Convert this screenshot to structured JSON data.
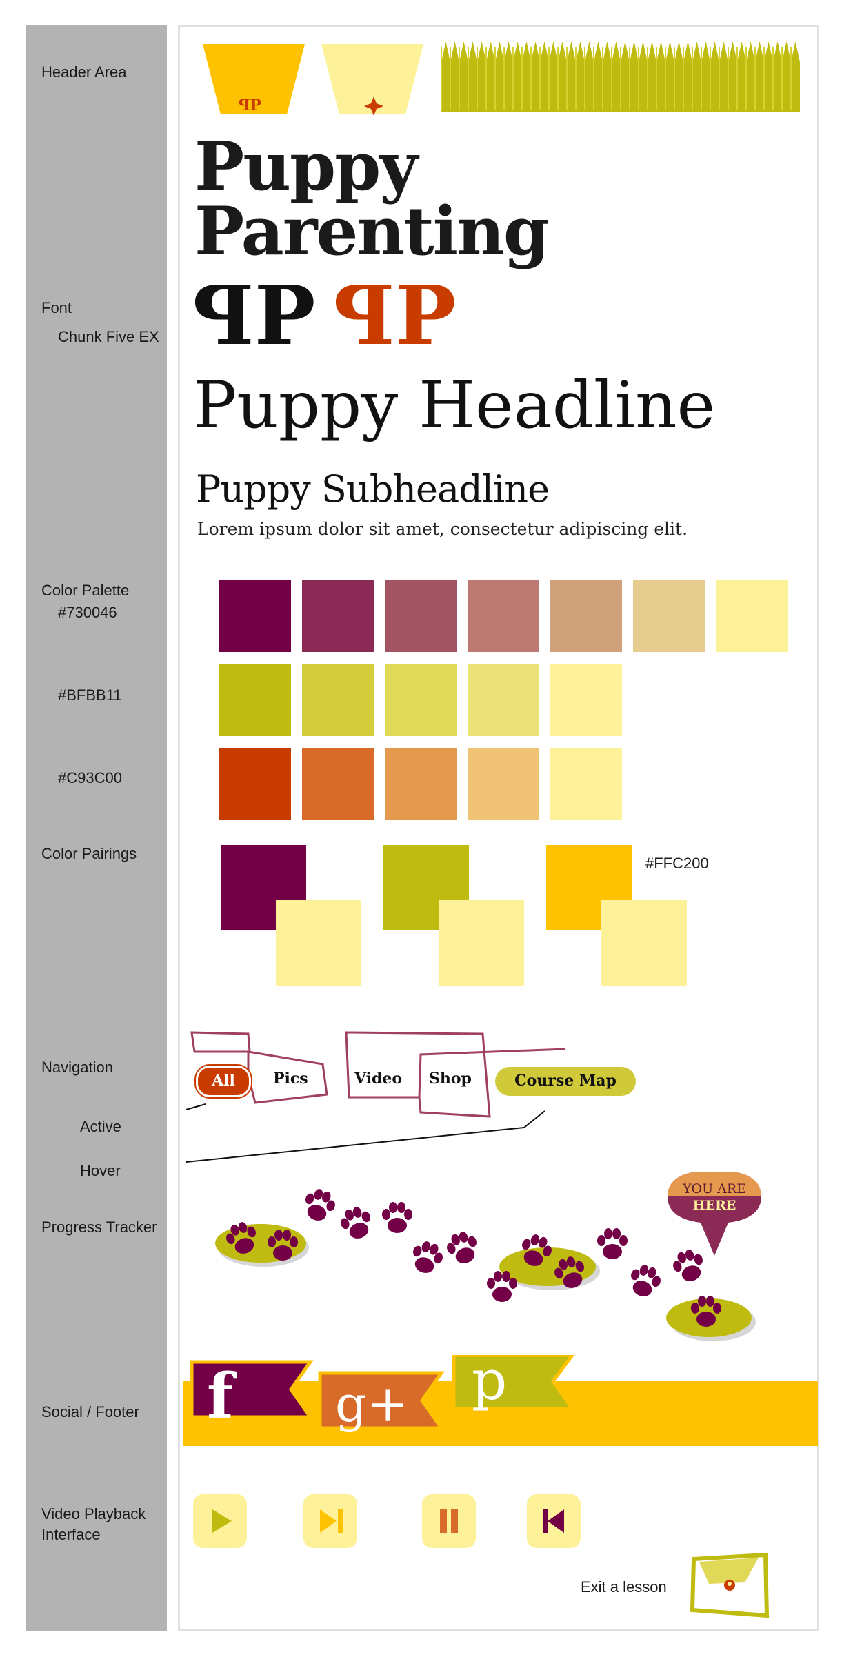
{
  "sidebar_labels": {
    "header_area": "Header Area",
    "font": "Font",
    "font_name": "Chunk Five EX",
    "color_palette": "Color Palette",
    "purple_hex": "#730046",
    "green_hex": "#BFBB11",
    "orange_hex": "#C93C00",
    "color_pairings": "Color Pairings",
    "navigation": "Navigation",
    "active": "Active",
    "hover": "Hover",
    "progress_tracker": "Progress Tracker",
    "social_footer": "Social / Footer",
    "video_playback_1": "Video Playback",
    "video_playback_2": "Interface"
  },
  "header": {
    "logo_mark": "ꟼP"
  },
  "typography": {
    "title_line1": "Puppy",
    "title_line2": "Parenting",
    "logo_black": "ꟼP",
    "logo_orange": "ꟼP",
    "headline": "Puppy Headline",
    "subheadline": "Puppy Subheadline",
    "body": "Lorem ipsum dolor sit amet, consectetur adipiscing elit."
  },
  "palette": {
    "purple": [
      "#730046",
      "#8a2a55",
      "#a25462",
      "#bd7a72",
      "#d0a27c",
      "#e6cc8f",
      "#fdf29a"
    ],
    "green": [
      "#bfbb11",
      "#d3cd3b",
      "#e0d857",
      "#ebe27a",
      "#fdf29a"
    ],
    "orange": [
      "#c93c00",
      "#d86b29",
      "#e5994f",
      "#efc276",
      "#fdf29a"
    ]
  },
  "pairings": {
    "gold_hex_label": "#FFC200",
    "pairs": [
      {
        "dark": "#730046",
        "light": "#fdf29a"
      },
      {
        "dark": "#bfbb11",
        "light": "#fdf29a"
      },
      {
        "dark": "#ffc200",
        "light": "#fdf29a"
      }
    ]
  },
  "navigation": {
    "all": "All",
    "pics": "Pics",
    "video": "Video",
    "shop": "Shop",
    "course_map": "Course Map"
  },
  "progress": {
    "marker_line1": "YOU ARE",
    "marker_line2": "HERE"
  },
  "social": {
    "facebook": "f",
    "google": "g+",
    "pinterest": "p"
  },
  "video": {
    "exit_label": "Exit a lesson"
  },
  "colors": {
    "purple": "#730046",
    "green": "#bfbb11",
    "orange": "#c93c00",
    "gold": "#ffc200",
    "cream": "#fdf29a"
  }
}
